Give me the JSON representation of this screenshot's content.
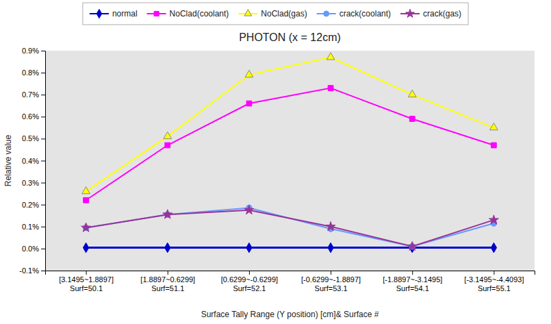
{
  "chart_data": {
    "type": "line",
    "title": "PHOTON (x = 12cm)",
    "x_label": "Surface Tally Range (Y position) [cm]& Surface #",
    "y_label": "Relative value",
    "categories": [
      "[3.1495~1.8897]\nSurf=50.1",
      "[1.8897~0.6299]\nSurf=51.1",
      "[0.6299~-0.6299]\nSurf=52.1",
      "[-0.6299~-1.8897]\nSurf=53.1",
      "[-1.8897~-3.1495]\nSurf=54.1",
      "[-3.1495~-4.4093]\nSurf=55.1"
    ],
    "series": [
      {
        "name": "normal",
        "color": "#0000CC",
        "marker": "diamond",
        "values": [
          4e-05,
          4e-05,
          4e-05,
          4e-05,
          4e-05,
          4e-05
        ]
      },
      {
        "name": "NoClad(coolant)",
        "color": "#FF00FF",
        "marker": "square",
        "values": [
          0.0022,
          0.0047,
          0.0066,
          0.0073,
          0.0059,
          0.0047
        ]
      },
      {
        "name": "NoClad(gas)",
        "color": "#FFFF00",
        "marker": "triangle",
        "values": [
          0.0026,
          0.0051,
          0.0079,
          0.0087,
          0.007,
          0.0055
        ]
      },
      {
        "name": "crack(coolant)",
        "color": "#6699FF",
        "marker": "circle",
        "values": [
          0.00095,
          0.00155,
          0.00185,
          0.0009,
          0.0001,
          0.00115
        ]
      },
      {
        "name": "crack(gas)",
        "color": "#993399",
        "marker": "star",
        "values": [
          0.00095,
          0.00155,
          0.00175,
          0.001,
          0.0001,
          0.0013
        ]
      }
    ],
    "ylim": [
      -0.001,
      0.009
    ],
    "yticks": [
      {
        "value": -0.001,
        "label": "-0.1%"
      },
      {
        "value": 0.0,
        "label": "0.0%"
      },
      {
        "value": 0.001,
        "label": "0.1%"
      },
      {
        "value": 0.002,
        "label": "0.2%"
      },
      {
        "value": 0.003,
        "label": "0.3%"
      },
      {
        "value": 0.004,
        "label": "0.4%"
      },
      {
        "value": 0.005,
        "label": "0.5%"
      },
      {
        "value": 0.006,
        "label": "0.6%"
      },
      {
        "value": 0.007,
        "label": "0.7%"
      },
      {
        "value": 0.008,
        "label": "0.8%"
      },
      {
        "value": 0.009,
        "label": "0.9%"
      }
    ],
    "grid": false,
    "legend": "top"
  }
}
